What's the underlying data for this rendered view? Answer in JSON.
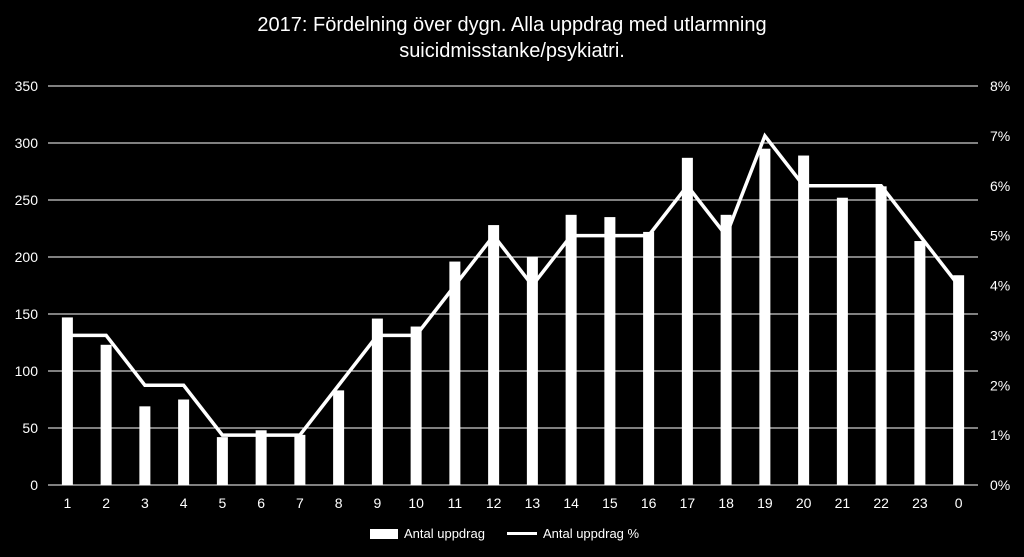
{
  "chart_data": {
    "type": "bar+line",
    "title_line1": "2017: Fördelning över dygn. Alla uppdrag med utlarmning",
    "title_line2": "suicidmisstanke/psykiatri.",
    "categories": [
      "1",
      "2",
      "3",
      "4",
      "5",
      "6",
      "7",
      "8",
      "9",
      "10",
      "11",
      "12",
      "13",
      "14",
      "15",
      "16",
      "17",
      "18",
      "19",
      "20",
      "21",
      "22",
      "23",
      "0"
    ],
    "series": [
      {
        "name": "Antal uppdrag",
        "type": "bar",
        "axis": "left",
        "values": [
          147,
          123,
          69,
          75,
          42,
          48,
          44,
          83,
          146,
          139,
          196,
          228,
          200,
          237,
          235,
          222,
          287,
          237,
          295,
          289,
          252,
          262,
          214,
          184
        ]
      },
      {
        "name": "Antal uppdrag %",
        "type": "line",
        "axis": "right",
        "values": [
          3,
          3,
          2,
          2,
          1,
          1,
          1,
          2,
          3,
          3,
          4,
          5,
          4,
          5,
          5,
          5,
          6,
          5,
          7,
          6,
          6,
          6,
          5,
          4
        ]
      }
    ],
    "ylim_left": [
      0,
      350
    ],
    "yticks_left": [
      "0",
      "50",
      "100",
      "150",
      "200",
      "250",
      "300",
      "350"
    ],
    "ylim_right": [
      0,
      8
    ],
    "yticks_right": [
      "0%",
      "1%",
      "2%",
      "3%",
      "4%",
      "5%",
      "6%",
      "7%",
      "8%"
    ],
    "grid": true,
    "legend": "bottom",
    "colors": {
      "background": "#000000",
      "bars": "#ffffff",
      "line": "#ffffff",
      "grid": "#ffffff",
      "text": "#ffffff"
    }
  }
}
